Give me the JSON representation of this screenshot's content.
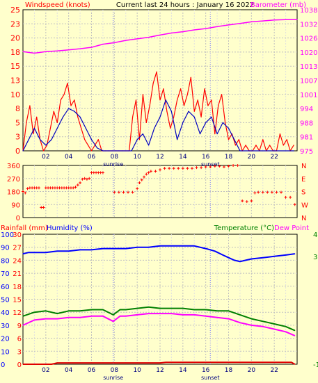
{
  "chart_data": [
    {
      "type": "line",
      "title": "Current last 24 hours : January 16 2022",
      "left_label": "Windspeed (knots)",
      "right_label": "Barometer (mb)",
      "x_ticks": [
        "02",
        "04",
        "06",
        "08",
        "10",
        "12",
        "14",
        "16",
        "18",
        "20",
        "22"
      ],
      "x_range": [
        0,
        24
      ],
      "night_markers": [
        {
          "x": 7.9,
          "label": "sunrise"
        },
        {
          "x": 16.4,
          "label": "sunset"
        }
      ],
      "y_left": {
        "ticks": [
          "0",
          "3",
          "5",
          "8",
          "10",
          "13",
          "15",
          "18",
          "20",
          "23",
          "25"
        ],
        "range": [
          0,
          25
        ]
      },
      "y_right": {
        "ticks": [
          "975",
          "981",
          "988",
          "994",
          "1001",
          "1007",
          "1013",
          "1020",
          "1026",
          "1032",
          "1038"
        ],
        "range": [
          975,
          1038
        ]
      },
      "grid": true,
      "series": [
        {
          "name": "Windspeed (knots)",
          "color": "#ff0000",
          "axis": "left",
          "x": [
            0,
            0.3,
            0.6,
            0.9,
            1.2,
            1.5,
            1.8,
            2.1,
            2.4,
            2.7,
            3.0,
            3.3,
            3.6,
            3.9,
            4.2,
            4.5,
            4.8,
            5.1,
            5.4,
            5.7,
            6.0,
            6.3,
            6.6,
            6.9,
            7.2,
            7.5,
            7.8,
            8.1,
            8.4,
            8.7,
            9.0,
            9.3,
            9.6,
            9.9,
            10.2,
            10.5,
            10.8,
            11.1,
            11.4,
            11.7,
            12.0,
            12.3,
            12.6,
            12.9,
            13.2,
            13.5,
            13.8,
            14.1,
            14.4,
            14.7,
            15.0,
            15.3,
            15.6,
            15.9,
            16.2,
            16.5,
            16.8,
            17.1,
            17.4,
            17.7,
            18.0,
            18.3,
            18.6,
            18.9,
            19.2,
            19.5,
            19.8,
            20.1,
            20.4,
            20.7,
            21.0,
            21.3,
            21.6,
            21.9,
            22.2,
            22.5,
            22.8,
            23.1,
            23.4,
            23.7
          ],
          "y": [
            0,
            5,
            8,
            3,
            6,
            2,
            0,
            1,
            4,
            7,
            5,
            9,
            10,
            12,
            8,
            9,
            6,
            4,
            2,
            1,
            0,
            1,
            2,
            0,
            0,
            0,
            0,
            0,
            0,
            0,
            0,
            0,
            6,
            9,
            2,
            10,
            5,
            8,
            12,
            14,
            9,
            11,
            7,
            4,
            6,
            9,
            11,
            8,
            10,
            13,
            7,
            9,
            6,
            11,
            8,
            9,
            3,
            8,
            10,
            5,
            2,
            3,
            1,
            2,
            0,
            1,
            0,
            0,
            1,
            0,
            2,
            0,
            1,
            0,
            0,
            3,
            1,
            2,
            0,
            1
          ]
        },
        {
          "name": "Windspeed avg",
          "color": "#0000c0",
          "axis": "left",
          "x": [
            0,
            0.5,
            1.0,
            1.5,
            2.0,
            2.5,
            3.0,
            3.5,
            4.0,
            4.5,
            5.0,
            5.5,
            6.0,
            6.5,
            7.0,
            9.5,
            10.0,
            10.5,
            11.0,
            11.5,
            12.0,
            12.5,
            13.0,
            13.5,
            14.0,
            14.5,
            15.0,
            15.5,
            16.0,
            16.5,
            17.0,
            17.5,
            18.0,
            18.5,
            19.0,
            20.0,
            21.0,
            22.0,
            23.0,
            23.7
          ],
          "y": [
            0,
            2,
            4,
            2,
            1,
            2,
            4,
            6,
            7.5,
            7,
            6,
            4,
            2,
            0.5,
            0,
            0,
            2,
            3,
            1,
            4,
            6,
            9,
            7,
            2,
            5,
            7,
            6,
            3,
            5,
            6,
            3,
            5,
            4,
            2,
            0,
            0,
            0,
            0,
            0,
            0
          ]
        },
        {
          "name": "Barometer (mb)",
          "color": "#ff00ff",
          "axis": "right",
          "x": [
            0,
            1,
            2,
            3,
            4,
            5,
            6,
            7,
            8,
            9,
            10,
            11,
            12,
            13,
            14,
            15,
            16,
            17,
            18,
            19,
            20,
            21,
            22,
            23,
            24
          ],
          "y": [
            1019.3,
            1018.6,
            1019.3,
            1019.6,
            1020.1,
            1020.6,
            1021.2,
            1022.6,
            1023.3,
            1024.3,
            1025.0,
            1025.7,
            1026.7,
            1027.6,
            1028.2,
            1029.0,
            1029.6,
            1030.5,
            1031.2,
            1031.9,
            1032.6,
            1033.0,
            1033.4,
            1033.6,
            1033.6
          ]
        }
      ]
    },
    {
      "type": "scatter",
      "title": "",
      "left_ticks": [
        "0",
        "90",
        "180",
        "270",
        "360"
      ],
      "right_ticks": [
        "N",
        "W",
        "S",
        "E",
        "N"
      ],
      "y_range": [
        0,
        360
      ],
      "x_range": [
        0,
        24
      ],
      "night_markers": [
        {
          "x": 7.9,
          "label": "sunrise"
        },
        {
          "x": 16.4,
          "label": "sunset"
        }
      ],
      "series": [
        {
          "name": "Wind direction",
          "color": "#ff0000",
          "x": [
            0,
            0.2,
            0.4,
            0.6,
            0.8,
            1.0,
            1.2,
            1.4,
            1.6,
            1.8,
            2.0,
            2.2,
            2.4,
            2.6,
            2.8,
            3.0,
            3.2,
            3.4,
            3.6,
            3.8,
            4.0,
            4.2,
            4.4,
            4.6,
            4.8,
            5.0,
            5.2,
            5.4,
            5.6,
            5.8,
            6.0,
            6.2,
            6.4,
            6.6,
            6.8,
            7.0,
            8.0,
            8.4,
            8.8,
            9.2,
            9.6,
            10.0,
            10.2,
            10.4,
            10.6,
            10.8,
            11.0,
            11.2,
            11.6,
            12.0,
            12.4,
            12.8,
            13.2,
            13.6,
            14.0,
            14.4,
            14.8,
            15.2,
            15.6,
            16.0,
            16.4,
            16.8,
            17.2,
            17.6,
            18.0,
            18.4,
            18.8,
            19.2,
            19.6,
            20.0,
            20.3,
            20.6,
            21.0,
            21.4,
            21.8,
            22.2,
            22.6,
            23.0,
            23.4,
            23.8
          ],
          "y": [
            180,
            170,
            200,
            205,
            205,
            205,
            205,
            205,
            70,
            70,
            205,
            205,
            205,
            205,
            205,
            205,
            205,
            205,
            205,
            205,
            205,
            205,
            205,
            210,
            225,
            240,
            265,
            270,
            265,
            270,
            310,
            310,
            310,
            310,
            310,
            310,
            175,
            175,
            175,
            175,
            175,
            200,
            240,
            260,
            280,
            300,
            310,
            320,
            320,
            330,
            340,
            340,
            340,
            340,
            340,
            340,
            340,
            345,
            345,
            350,
            350,
            355,
            355,
            350,
            355,
            360,
            360,
            115,
            110,
            115,
            170,
            175,
            175,
            175,
            175,
            175,
            175,
            140,
            140,
            90
          ]
        }
      ]
    },
    {
      "type": "line",
      "title": "",
      "left_label_1": "Rainfall (mm)",
      "left_label_2": "Humidity (%)",
      "right_label_1": "Temperature (°C)",
      "right_label_2": "Dew Point",
      "x_ticks": [
        "02",
        "04",
        "06",
        "08",
        "10",
        "12",
        "14",
        "16",
        "18",
        "20",
        "22"
      ],
      "x_range": [
        0,
        24
      ],
      "night_markers": [
        {
          "x": 7.9,
          "label": "sunrise"
        },
        {
          "x": 16.4,
          "label": "sunset"
        }
      ],
      "y_left_outer": {
        "ticks": [
          "0",
          "10",
          "20",
          "30",
          "40",
          "50",
          "60",
          "70",
          "80",
          "90",
          "100"
        ],
        "range": [
          0,
          100
        ]
      },
      "y_left_inner": {
        "ticks": [
          "0",
          "3",
          "6",
          "9",
          "12",
          "15",
          "18",
          "21",
          "24",
          "27",
          "30"
        ],
        "range": [
          0,
          30
        ]
      },
      "y_right": {
        "ticks": [
          "-1",
          "3",
          "4"
        ],
        "range": [
          -1,
          4
        ]
      },
      "grid": true,
      "series": [
        {
          "name": "Humidity (%)",
          "color": "#0000ff",
          "axis": "left_outer",
          "x": [
            0,
            0.5,
            1,
            2,
            3,
            4,
            5,
            6,
            7,
            8,
            9,
            10,
            11,
            12,
            13,
            14,
            15,
            16,
            16.8,
            17.5,
            18,
            18.5,
            19,
            19.5,
            20,
            21,
            22,
            23,
            23.8
          ],
          "y": [
            85,
            86,
            86,
            86,
            87,
            87,
            88,
            88,
            89,
            89,
            89,
            90,
            90,
            91,
            91,
            91,
            91,
            89,
            87,
            84,
            82,
            80,
            79,
            80,
            81,
            82,
            83,
            84,
            85
          ]
        },
        {
          "name": "Temperature (°C)",
          "color": "#008000",
          "axis": "left_outer",
          "x": [
            0,
            1,
            2,
            3,
            4,
            5,
            6,
            7,
            7.9,
            8.5,
            9,
            10,
            11,
            12,
            13,
            14,
            15,
            16,
            17,
            18,
            19,
            20,
            21,
            22,
            23,
            23.8
          ],
          "y": [
            37,
            40,
            41,
            39,
            41,
            41,
            42,
            42,
            38,
            42,
            42,
            43,
            44,
            43,
            43,
            43,
            42,
            42,
            41,
            41,
            38,
            35,
            33,
            31,
            29,
            26
          ]
        },
        {
          "name": "Dew Point",
          "color": "#ff00ff",
          "axis": "left_outer",
          "x": [
            0,
            1,
            2,
            3,
            4,
            5,
            6,
            7,
            7.9,
            8.5,
            9,
            10,
            11,
            12,
            13,
            14,
            15,
            16,
            17,
            18,
            19,
            20,
            21,
            22,
            23,
            23.8
          ],
          "y": [
            30,
            34,
            35,
            35,
            36,
            36,
            37,
            37,
            33,
            37,
            37,
            38,
            39,
            39,
            39,
            38,
            38,
            37,
            36,
            35,
            32,
            30,
            29,
            27,
            25,
            22
          ]
        },
        {
          "name": "Rainfall (mm)",
          "color": "#e00000",
          "axis": "left_inner",
          "x": [
            0,
            2.5,
            3.0,
            12.0,
            12.5,
            23.5,
            23.8
          ],
          "y": [
            0,
            0,
            0.3,
            0.3,
            0.45,
            0.45,
            0
          ]
        }
      ]
    }
  ]
}
